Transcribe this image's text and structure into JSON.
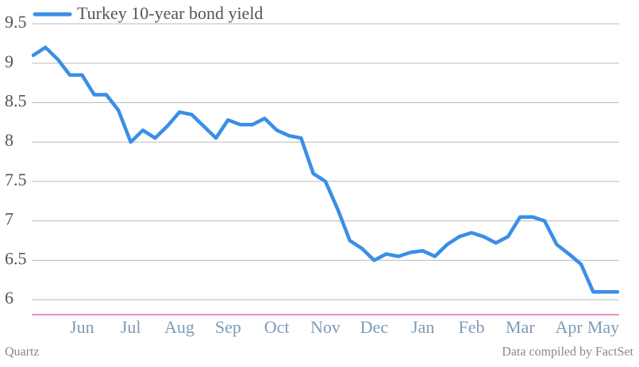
{
  "chart_data": {
    "type": "line",
    "series": [
      {
        "name": "Turkey 10-year bond yield",
        "color": "#3a8ee6",
        "values": [
          9.1,
          9.2,
          9.05,
          8.85,
          8.85,
          8.6,
          8.6,
          8.4,
          8.0,
          8.15,
          8.05,
          8.2,
          8.38,
          8.35,
          8.2,
          8.05,
          8.28,
          8.22,
          8.22,
          8.3,
          8.15,
          8.08,
          8.05,
          7.6,
          7.5,
          7.15,
          6.75,
          6.65,
          6.5,
          6.58,
          6.55,
          6.6,
          6.62,
          6.55,
          6.7,
          6.8,
          6.85,
          6.8,
          6.72,
          6.8,
          7.05,
          7.05,
          7.0,
          6.7,
          6.58,
          6.45,
          6.1,
          6.1,
          6.1
        ]
      }
    ],
    "categories": [
      null,
      null,
      null,
      null,
      "Jun",
      null,
      null,
      null,
      "Jul",
      null,
      null,
      null,
      "Aug",
      null,
      null,
      null,
      "Sep",
      null,
      null,
      null,
      "Oct",
      null,
      null,
      null,
      "Nov",
      null,
      null,
      null,
      "Dec",
      null,
      null,
      null,
      "Jan",
      null,
      null,
      null,
      "Feb",
      null,
      null,
      null,
      "Mar",
      null,
      null,
      null,
      "Apr",
      null,
      null,
      null,
      "May"
    ],
    "ylim": [
      5.8,
      9.5
    ],
    "yticks": [
      6,
      6.5,
      7,
      7.5,
      8,
      8.5,
      9,
      9.5
    ],
    "grid": true,
    "source_left": "Quartz",
    "source_right": "Data compiled by FactSet"
  }
}
